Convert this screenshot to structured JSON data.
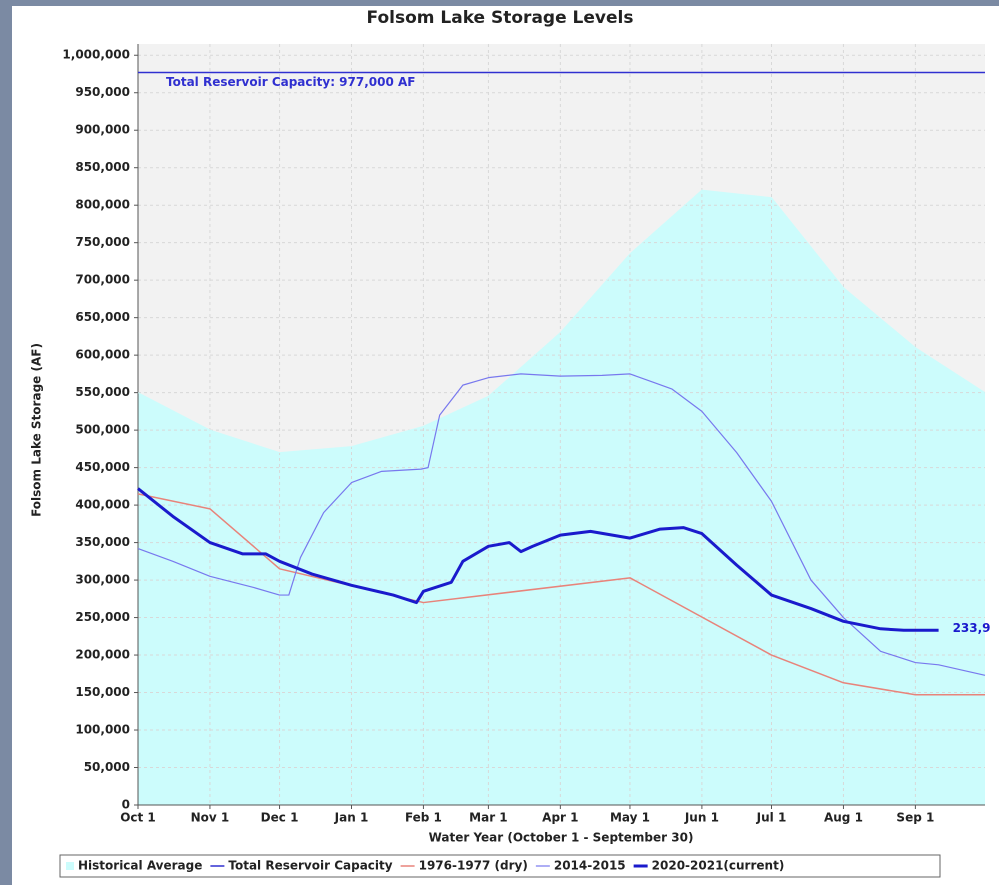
{
  "chart_data": {
    "type": "line",
    "title": "Folsom Lake Storage Levels",
    "x_label": "Water Year (October 1 - September 30)",
    "y_label": "Folsom Lake Storage (AF)",
    "xlim": [
      0,
      365
    ],
    "xticks": [
      {
        "value": 0,
        "label": "Oct 1"
      },
      {
        "value": 31,
        "label": "Nov 1"
      },
      {
        "value": 61,
        "label": "Dec 1"
      },
      {
        "value": 92,
        "label": "Jan 1"
      },
      {
        "value": 123,
        "label": "Feb 1"
      },
      {
        "value": 151,
        "label": "Mar 1"
      },
      {
        "value": 182,
        "label": "Apr 1"
      },
      {
        "value": 212,
        "label": "May 1"
      },
      {
        "value": 243,
        "label": "Jun 1"
      },
      {
        "value": 273,
        "label": "Jul 1"
      },
      {
        "value": 304,
        "label": "Aug 1"
      },
      {
        "value": 335,
        "label": "Sep 1"
      }
    ],
    "ylim": [
      0,
      1015000
    ],
    "yticks": [
      0,
      {
        "value": 50000,
        "label": "50,000"
      },
      {
        "value": 100000,
        "label": "100,000"
      },
      {
        "value": 150000,
        "label": "150,000"
      },
      {
        "value": 200000,
        "label": "200,000"
      },
      {
        "value": 250000,
        "label": "250,000"
      },
      {
        "value": 300000,
        "label": "300,000"
      },
      {
        "value": 350000,
        "label": "350,000"
      },
      {
        "value": 400000,
        "label": "400,000"
      },
      {
        "value": 450000,
        "label": "450,000"
      },
      {
        "value": 500000,
        "label": "500,000"
      },
      {
        "value": 550000,
        "label": "550,000"
      },
      {
        "value": 600000,
        "label": "600,000"
      },
      {
        "value": 650000,
        "label": "650,000"
      },
      {
        "value": 700000,
        "label": "700,000"
      },
      {
        "value": 750000,
        "label": "750,000"
      },
      {
        "value": 800000,
        "label": "800,000"
      },
      {
        "value": 850000,
        "label": "850,000"
      },
      {
        "value": 900000,
        "label": "900,000"
      },
      {
        "value": 950000,
        "label": "950,000"
      },
      {
        "value": 1000000,
        "label": "1,000,000"
      }
    ],
    "grid": true,
    "legend": "bottom",
    "series": [
      {
        "name": "Historical Average",
        "kind": "area",
        "color": "#ccfcfc",
        "x": [
          0,
          31,
          61,
          92,
          123,
          151,
          182,
          212,
          243,
          273,
          304,
          335,
          365
        ],
        "values": [
          550000,
          500000,
          470000,
          478000,
          505000,
          545000,
          630000,
          735000,
          820000,
          810000,
          690000,
          610000,
          550000
        ]
      },
      {
        "name": "Total Reservoir Capacity",
        "kind": "line",
        "color": "#3030d0",
        "width": 1.5,
        "x": [
          0,
          365
        ],
        "values": [
          977000,
          977000
        ],
        "annotation": "Total Reservoir Capacity: 977,000 AF"
      },
      {
        "name": "1976-1977 (dry)",
        "kind": "line",
        "color": "#e8837a",
        "width": 1.5,
        "x": [
          0,
          31,
          61,
          123,
          212,
          273,
          304,
          335,
          365
        ],
        "values": [
          415000,
          395000,
          315000,
          270000,
          303000,
          200000,
          163000,
          147000,
          147000
        ]
      },
      {
        "name": "2014-2015",
        "kind": "line",
        "color": "#7878ee",
        "width": 1.2,
        "x": [
          0,
          15,
          31,
          50,
          61,
          65,
          70,
          80,
          92,
          105,
          122,
          125,
          130,
          140,
          151,
          165,
          182,
          200,
          212,
          230,
          243,
          258,
          273,
          290,
          304,
          320,
          335,
          345,
          365
        ],
        "values": [
          342000,
          325000,
          305000,
          290000,
          280000,
          280000,
          330000,
          390000,
          430000,
          445000,
          448000,
          450000,
          520000,
          560000,
          570000,
          575000,
          572000,
          573000,
          575000,
          555000,
          525000,
          470000,
          405000,
          300000,
          250000,
          205000,
          190000,
          187000,
          173000
        ]
      },
      {
        "name": "2020-2021(current)",
        "kind": "line",
        "color": "#1a1acc",
        "width": 3,
        "x": [
          0,
          15,
          31,
          45,
          55,
          61,
          75,
          92,
          110,
          120,
          123,
          135,
          140,
          151,
          160,
          165,
          170,
          182,
          195,
          212,
          225,
          235,
          243,
          258,
          273,
          290,
          304,
          320,
          330,
          345
        ],
        "values": [
          422000,
          385000,
          350000,
          335000,
          335000,
          325000,
          308000,
          293000,
          280000,
          270000,
          285000,
          297000,
          325000,
          345000,
          350000,
          338000,
          345000,
          360000,
          365000,
          356000,
          368000,
          370000,
          362000,
          320000,
          280000,
          262000,
          245000,
          235000,
          233000,
          233000
        ],
        "end_label": "233,9"
      }
    ]
  }
}
